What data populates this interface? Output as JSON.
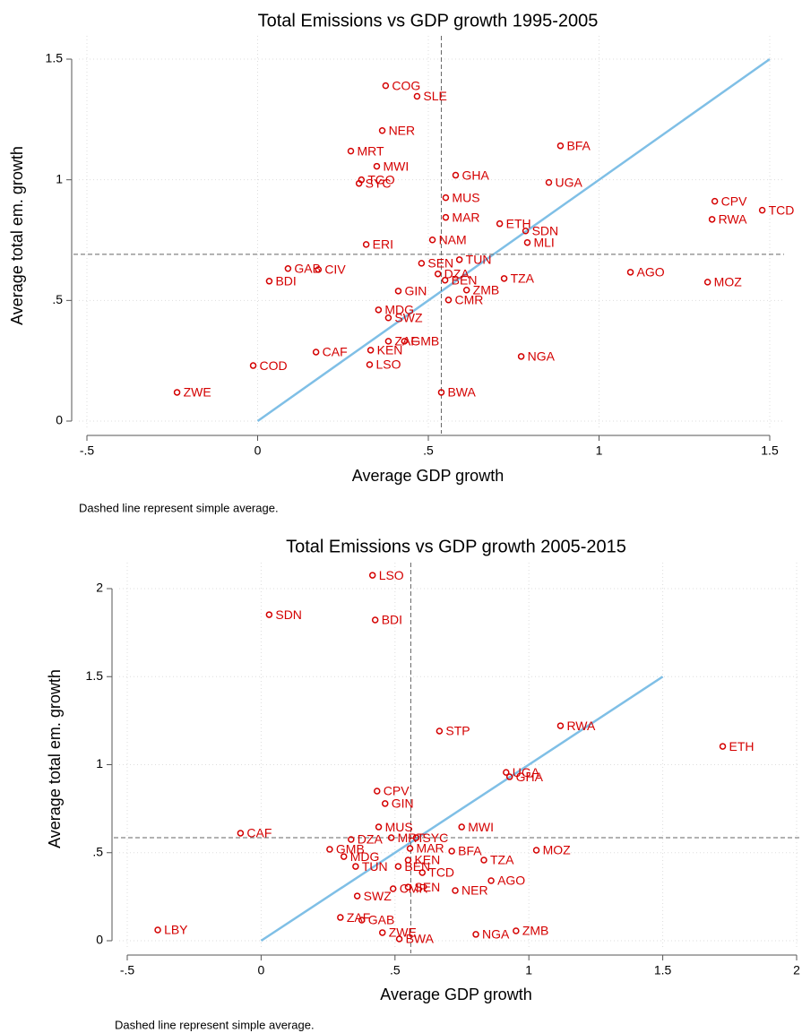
{
  "chart_data": [
    {
      "type": "scatter",
      "title": "Total Emissions vs GDP growth 1995-2005",
      "x_label": "Average GDP growth",
      "y_label": "Average total em. growth",
      "note": "Dashed line represent simple average.",
      "color": "#d40000",
      "grid": true,
      "labels": [
        "COG",
        "SLE",
        "NER",
        "MRT",
        "MWI",
        "TGO",
        "SYC",
        "BFA",
        "GHA",
        "UGA",
        "MUS",
        "MAR",
        "ETH",
        "SDN",
        "MLI",
        "NAM",
        "ERI",
        "TUN",
        "SEN",
        "DZA",
        "BEN",
        "TZA",
        "ZMB",
        "CMR",
        "GIN",
        "GAB",
        "CIV",
        "BDI",
        "MDG",
        "SWZ",
        "ZAF",
        "GMB",
        "CAF",
        "KEN",
        "LSO",
        "COD",
        "ZWE",
        "BWA",
        "NGA",
        "AGO",
        "MOZ",
        "CPV",
        "RWA",
        "TCD"
      ],
      "x": [
        0.375,
        0.467,
        0.365,
        0.273,
        0.349,
        0.304,
        0.297,
        0.887,
        0.58,
        0.853,
        0.551,
        0.551,
        0.709,
        0.785,
        0.79,
        0.512,
        0.318,
        0.591,
        0.48,
        0.528,
        0.549,
        0.722,
        0.612,
        0.559,
        0.412,
        0.089,
        0.178,
        0.034,
        0.354,
        0.383,
        0.383,
        0.43,
        0.171,
        0.331,
        0.328,
        -0.013,
        -0.236,
        0.538,
        0.772,
        1.092,
        1.318,
        1.339,
        1.331,
        1.478
      ],
      "y": [
        1.39,
        1.346,
        1.204,
        1.119,
        1.056,
        1.0,
        0.985,
        1.141,
        1.019,
        0.989,
        0.926,
        0.844,
        0.818,
        0.788,
        0.74,
        0.751,
        0.732,
        0.669,
        0.654,
        0.61,
        0.584,
        0.591,
        0.543,
        0.502,
        0.539,
        0.632,
        0.628,
        0.58,
        0.461,
        0.428,
        0.331,
        0.331,
        0.286,
        0.294,
        0.234,
        0.23,
        0.119,
        0.119,
        0.268,
        0.617,
        0.576,
        0.911,
        0.836,
        0.874
      ],
      "x_mean": 0.538,
      "y_mean": 0.691,
      "reference_line": {
        "x": [
          0,
          1.5
        ],
        "y": [
          0,
          1.5
        ],
        "color": "#7fbfe6"
      },
      "xlim": [
        -0.5,
        1.5
      ],
      "ylim": [
        0,
        1.5
      ],
      "xticks": [
        {
          "value": -0.5,
          "label": "-.5"
        },
        0,
        {
          "value": 0.5,
          "label": ".5"
        },
        1,
        1.5
      ],
      "yticks": [
        0,
        {
          "value": 0.5,
          "label": ".5"
        },
        1,
        1.5
      ]
    },
    {
      "type": "scatter",
      "title": "Total Emissions vs GDP growth 2005-2015",
      "x_label": "Average GDP growth",
      "y_label": "Average total em. growth",
      "note": "Dashed line represent simple average.",
      "color": "#d40000",
      "grid": true,
      "labels": [
        "LSO",
        "SDN",
        "BDI",
        "STP",
        "RWA",
        "ETH",
        "UGA",
        "GHA",
        "CPV",
        "GIN",
        "CAF",
        "MWI",
        "MUS",
        "MRT",
        "SYC",
        "DZA",
        "GMB",
        "MDG",
        "MAR",
        "BFA",
        "MOZ",
        "TZA",
        "KEN",
        "TUN",
        "BEN",
        "TCD",
        "AGO",
        "NER",
        "CMR",
        "SEN",
        "SWZ",
        "ZAF",
        "GAB",
        "ZWE",
        "BWA",
        "LBY",
        "NGA",
        "ZMB"
      ],
      "x": [
        0.416,
        0.03,
        0.426,
        0.666,
        1.118,
        1.724,
        0.915,
        0.928,
        0.433,
        0.463,
        -0.077,
        0.749,
        0.439,
        0.486,
        0.579,
        0.336,
        0.256,
        0.309,
        0.556,
        0.712,
        1.028,
        0.832,
        0.549,
        0.353,
        0.512,
        0.602,
        0.859,
        0.725,
        0.493,
        0.549,
        0.359,
        0.296,
        0.376,
        0.453,
        0.516,
        -0.386,
        0.802,
        0.952
      ],
      "y": [
        2.076,
        1.852,
        1.822,
        1.191,
        1.221,
        1.104,
        0.956,
        0.931,
        0.85,
        0.779,
        0.611,
        0.646,
        0.646,
        0.585,
        0.585,
        0.575,
        0.519,
        0.478,
        0.524,
        0.509,
        0.514,
        0.458,
        0.458,
        0.422,
        0.422,
        0.387,
        0.341,
        0.285,
        0.295,
        0.305,
        0.254,
        0.132,
        0.117,
        0.046,
        0.01,
        0.061,
        0.036,
        0.056
      ],
      "x_mean": 0.559,
      "y_mean": 0.585,
      "reference_line": {
        "x": [
          0,
          1.5
        ],
        "y": [
          0,
          1.5
        ],
        "color": "#7fbfe6"
      },
      "xlim": [
        -0.5,
        2
      ],
      "ylim": [
        0,
        2
      ],
      "xticks": [
        {
          "value": -0.5,
          "label": "-.5"
        },
        0,
        {
          "value": 0.5,
          "label": ".5"
        },
        1,
        1.5,
        2
      ],
      "yticks": [
        0,
        {
          "value": 0.5,
          "label": ".5"
        },
        1,
        1.5,
        2
      ]
    }
  ]
}
